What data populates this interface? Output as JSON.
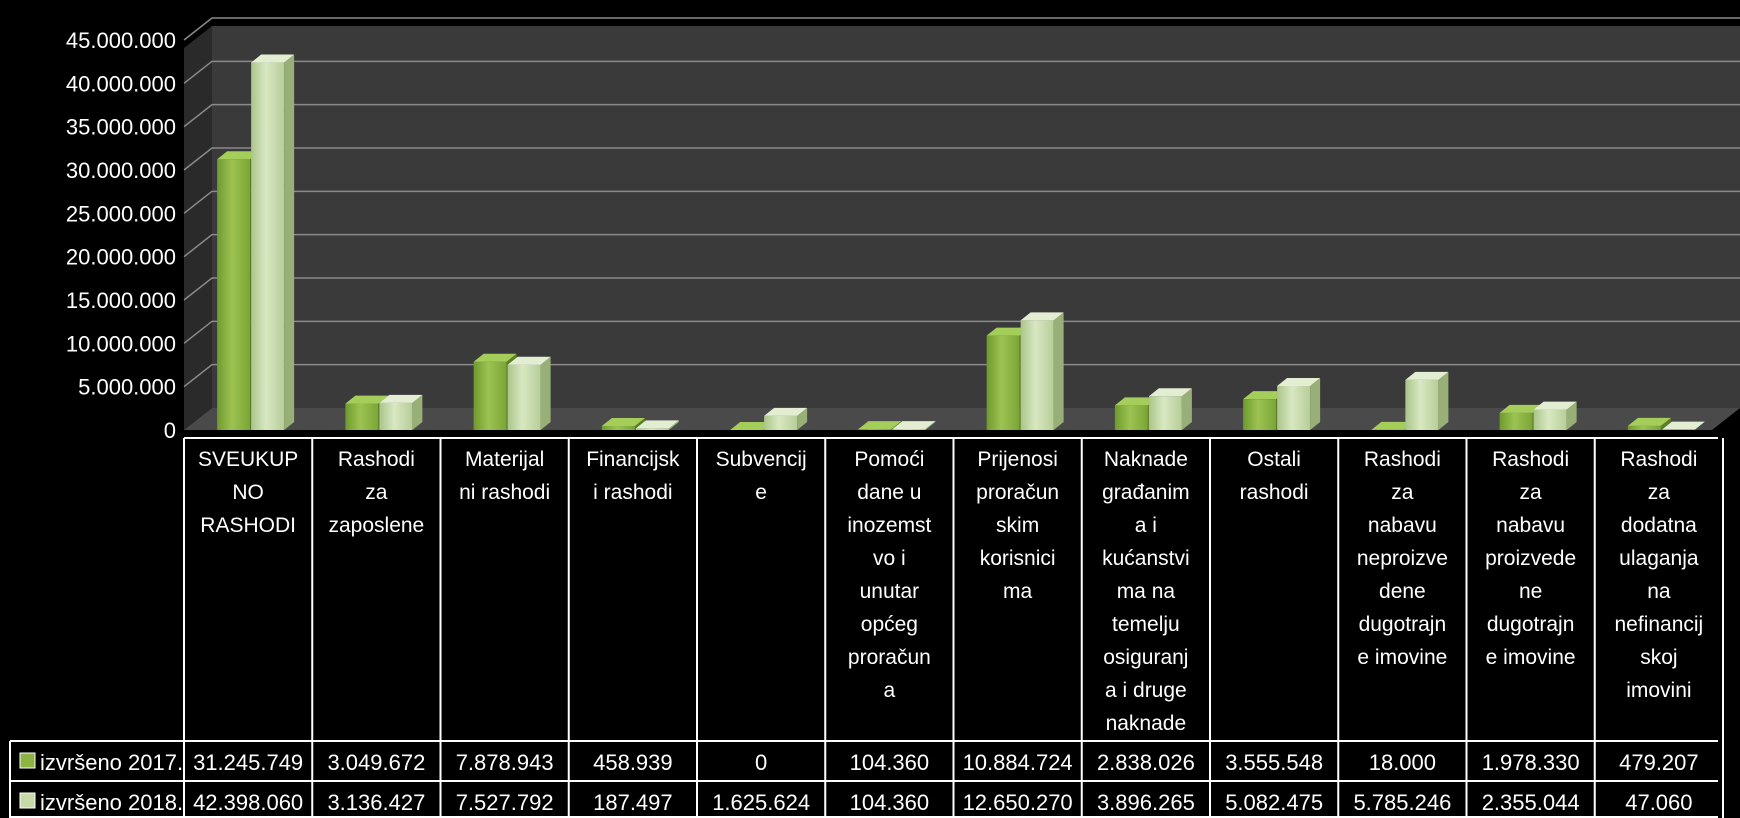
{
  "chart_data": {
    "type": "bar",
    "title": "",
    "xlabel": "",
    "ylabel": "",
    "ylim": [
      0,
      45000000
    ],
    "yticks": [
      "0",
      "5.000.000",
      "10.000.000",
      "15.000.000",
      "20.000.000",
      "25.000.000",
      "30.000.000",
      "35.000.000",
      "40.000.000",
      "45.000.000"
    ],
    "grid": true,
    "style": "3d-clustered-column with data table",
    "categories": [
      [
        "SVEUKUP",
        "NO",
        "RASHODI"
      ],
      [
        "Rashodi",
        "za",
        "zaposlene"
      ],
      [
        "Materijal",
        "ni rashodi"
      ],
      [
        "Financijsk",
        "i rashodi"
      ],
      [
        "Subvencij",
        "e"
      ],
      [
        "Pomoći",
        "dane u",
        "inozemst",
        "vo i",
        "unutar",
        "općeg",
        "proračun",
        "a"
      ],
      [
        "Prijenosi",
        "proračun",
        "skim",
        "korisnici",
        "ma"
      ],
      [
        "Naknade",
        "građanim",
        "a i",
        "kućanstvi",
        "ma na",
        "temelju",
        "osiguranj",
        "a i druge",
        "naknade"
      ],
      [
        "Ostali",
        "rashodi"
      ],
      [
        "Rashodi",
        "za",
        "nabavu",
        "neproizve",
        "dene",
        "dugotrajn",
        "e imovine"
      ],
      [
        "Rashodi",
        "za",
        "nabavu",
        "proizvede",
        "ne",
        "dugotrajn",
        "e imovine"
      ],
      [
        "Rashodi",
        "za",
        "dodatna",
        "ulaganja",
        "na",
        "nefinancij",
        "skoj",
        "imovini"
      ]
    ],
    "series": [
      {
        "name": "izvršeno 2017.",
        "color": "#8db443",
        "values": [
          31245749,
          3049672,
          7878943,
          458939,
          0,
          104360,
          10884724,
          2838026,
          3555548,
          18000,
          1978330,
          479207
        ],
        "labels": [
          "31.245.749",
          "3.049.672",
          "7.878.943",
          "458.939",
          "0",
          "104.360",
          "10.884.724",
          "2.838.026",
          "3.555.548",
          "18.000",
          "1.978.330",
          "479.207"
        ]
      },
      {
        "name": "izvršeno 2018.",
        "color": "#c6d9a8",
        "values": [
          42398060,
          3136427,
          7527792,
          187497,
          1625624,
          104360,
          12650270,
          3896265,
          5082475,
          5785246,
          2355044,
          47060
        ],
        "labels": [
          "42.398.060",
          "3.136.427",
          "7.527.792",
          "187.497",
          "1.625.624",
          "104.360",
          "12.650.270",
          "3.896.265",
          "5.082.475",
          "5.785.246",
          "2.355.044",
          "47.060"
        ]
      }
    ],
    "legend": "data-table-left"
  }
}
